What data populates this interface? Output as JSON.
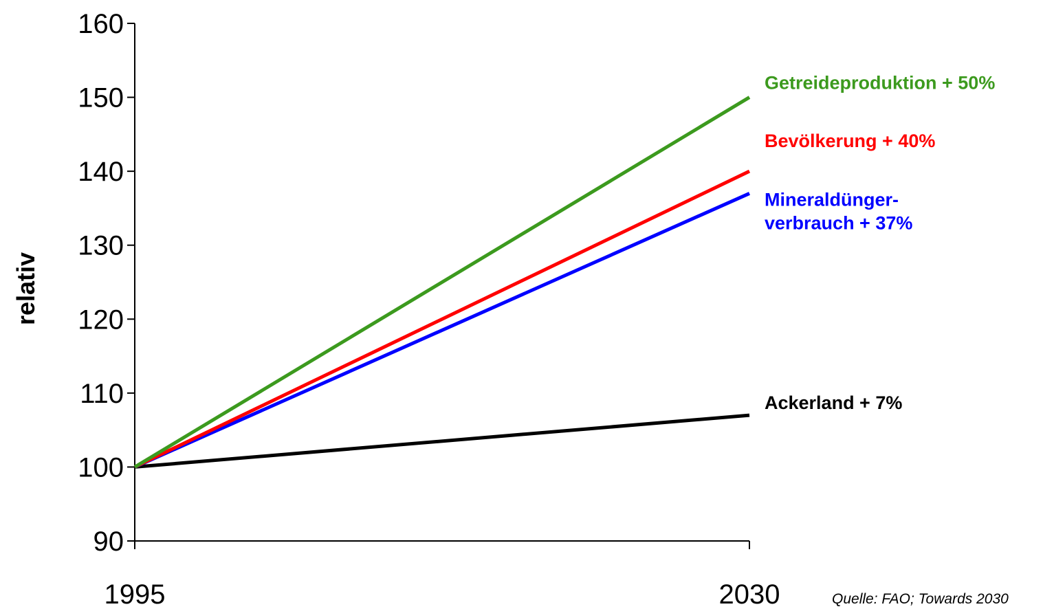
{
  "chart_data": {
    "type": "line",
    "title": "",
    "xlabel": "",
    "ylabel": "relativ",
    "x": [
      "1995",
      "2030"
    ],
    "ylim": [
      90,
      160
    ],
    "yticks": [
      90,
      100,
      110,
      120,
      130,
      140,
      150,
      160
    ],
    "grid": false,
    "legend": "none",
    "series": [
      {
        "name": "Getreideproduktion",
        "label_lines": [
          "Getreideproduktion + 50%"
        ],
        "values": [
          100,
          150
        ],
        "color": "#3c9a1e"
      },
      {
        "name": "Bevölkerung",
        "label_lines": [
          "Bevölkerung + 40%"
        ],
        "values": [
          100,
          140
        ],
        "color": "#ff0000"
      },
      {
        "name": "Mineraldüngerverbrauch",
        "label_lines": [
          "Mineraldünger-",
          "verbrauch + 37%"
        ],
        "values": [
          100,
          137
        ],
        "color": "#0000ff"
      },
      {
        "name": "Ackerland",
        "label_lines": [
          "Ackerland + 7%"
        ],
        "values": [
          100,
          107
        ],
        "color": "#000000"
      }
    ],
    "source": "Quelle: FAO; Towards 2030"
  }
}
